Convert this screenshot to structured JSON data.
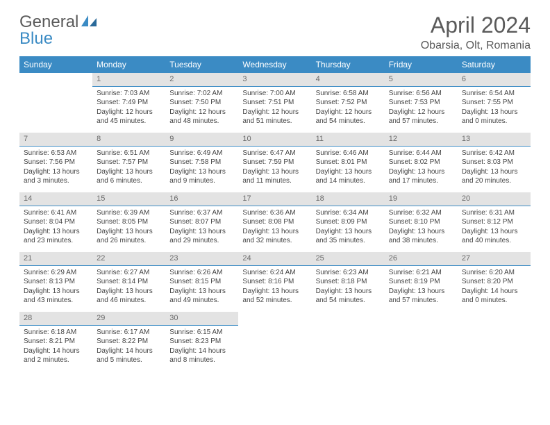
{
  "logo": {
    "word1": "General",
    "word2": "Blue"
  },
  "title": "April 2024",
  "location": "Obarsia, Olt, Romania",
  "dayHeaders": [
    "Sunday",
    "Monday",
    "Tuesday",
    "Wednesday",
    "Thursday",
    "Friday",
    "Saturday"
  ],
  "colors": {
    "header_bg": "#3b8bc4",
    "header_text": "#ffffff",
    "daynum_bg": "#e3e3e3",
    "daynum_text": "#6a6a6a",
    "divider": "#3b8bc4",
    "body_text": "#444444",
    "title_color": "#5a5a5a",
    "background": "#ffffff"
  },
  "typography": {
    "title_fontsize": 32,
    "location_fontsize": 16,
    "header_fontsize": 12,
    "daynum_fontsize": 11,
    "cell_fontsize": 10
  },
  "layout": {
    "columns": 7,
    "rows": 5,
    "start_weekday_index": 1
  },
  "days": [
    {
      "n": 1,
      "sunrise": "7:03 AM",
      "sunset": "7:49 PM",
      "daylight": "12 hours and 45 minutes."
    },
    {
      "n": 2,
      "sunrise": "7:02 AM",
      "sunset": "7:50 PM",
      "daylight": "12 hours and 48 minutes."
    },
    {
      "n": 3,
      "sunrise": "7:00 AM",
      "sunset": "7:51 PM",
      "daylight": "12 hours and 51 minutes."
    },
    {
      "n": 4,
      "sunrise": "6:58 AM",
      "sunset": "7:52 PM",
      "daylight": "12 hours and 54 minutes."
    },
    {
      "n": 5,
      "sunrise": "6:56 AM",
      "sunset": "7:53 PM",
      "daylight": "12 hours and 57 minutes."
    },
    {
      "n": 6,
      "sunrise": "6:54 AM",
      "sunset": "7:55 PM",
      "daylight": "13 hours and 0 minutes."
    },
    {
      "n": 7,
      "sunrise": "6:53 AM",
      "sunset": "7:56 PM",
      "daylight": "13 hours and 3 minutes."
    },
    {
      "n": 8,
      "sunrise": "6:51 AM",
      "sunset": "7:57 PM",
      "daylight": "13 hours and 6 minutes."
    },
    {
      "n": 9,
      "sunrise": "6:49 AM",
      "sunset": "7:58 PM",
      "daylight": "13 hours and 9 minutes."
    },
    {
      "n": 10,
      "sunrise": "6:47 AM",
      "sunset": "7:59 PM",
      "daylight": "13 hours and 11 minutes."
    },
    {
      "n": 11,
      "sunrise": "6:46 AM",
      "sunset": "8:01 PM",
      "daylight": "13 hours and 14 minutes."
    },
    {
      "n": 12,
      "sunrise": "6:44 AM",
      "sunset": "8:02 PM",
      "daylight": "13 hours and 17 minutes."
    },
    {
      "n": 13,
      "sunrise": "6:42 AM",
      "sunset": "8:03 PM",
      "daylight": "13 hours and 20 minutes."
    },
    {
      "n": 14,
      "sunrise": "6:41 AM",
      "sunset": "8:04 PM",
      "daylight": "13 hours and 23 minutes."
    },
    {
      "n": 15,
      "sunrise": "6:39 AM",
      "sunset": "8:05 PM",
      "daylight": "13 hours and 26 minutes."
    },
    {
      "n": 16,
      "sunrise": "6:37 AM",
      "sunset": "8:07 PM",
      "daylight": "13 hours and 29 minutes."
    },
    {
      "n": 17,
      "sunrise": "6:36 AM",
      "sunset": "8:08 PM",
      "daylight": "13 hours and 32 minutes."
    },
    {
      "n": 18,
      "sunrise": "6:34 AM",
      "sunset": "8:09 PM",
      "daylight": "13 hours and 35 minutes."
    },
    {
      "n": 19,
      "sunrise": "6:32 AM",
      "sunset": "8:10 PM",
      "daylight": "13 hours and 38 minutes."
    },
    {
      "n": 20,
      "sunrise": "6:31 AM",
      "sunset": "8:12 PM",
      "daylight": "13 hours and 40 minutes."
    },
    {
      "n": 21,
      "sunrise": "6:29 AM",
      "sunset": "8:13 PM",
      "daylight": "13 hours and 43 minutes."
    },
    {
      "n": 22,
      "sunrise": "6:27 AM",
      "sunset": "8:14 PM",
      "daylight": "13 hours and 46 minutes."
    },
    {
      "n": 23,
      "sunrise": "6:26 AM",
      "sunset": "8:15 PM",
      "daylight": "13 hours and 49 minutes."
    },
    {
      "n": 24,
      "sunrise": "6:24 AM",
      "sunset": "8:16 PM",
      "daylight": "13 hours and 52 minutes."
    },
    {
      "n": 25,
      "sunrise": "6:23 AM",
      "sunset": "8:18 PM",
      "daylight": "13 hours and 54 minutes."
    },
    {
      "n": 26,
      "sunrise": "6:21 AM",
      "sunset": "8:19 PM",
      "daylight": "13 hours and 57 minutes."
    },
    {
      "n": 27,
      "sunrise": "6:20 AM",
      "sunset": "8:20 PM",
      "daylight": "14 hours and 0 minutes."
    },
    {
      "n": 28,
      "sunrise": "6:18 AM",
      "sunset": "8:21 PM",
      "daylight": "14 hours and 2 minutes."
    },
    {
      "n": 29,
      "sunrise": "6:17 AM",
      "sunset": "8:22 PM",
      "daylight": "14 hours and 5 minutes."
    },
    {
      "n": 30,
      "sunrise": "6:15 AM",
      "sunset": "8:23 PM",
      "daylight": "14 hours and 8 minutes."
    }
  ],
  "labels": {
    "sunrise": "Sunrise:",
    "sunset": "Sunset:",
    "daylight": "Daylight:"
  }
}
